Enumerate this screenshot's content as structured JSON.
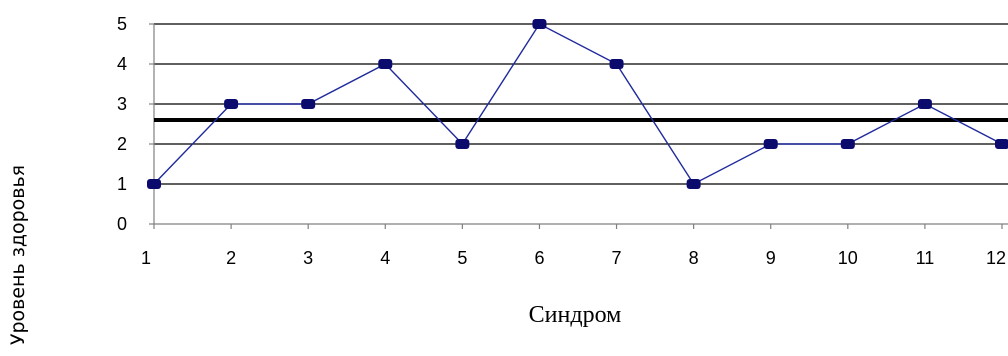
{
  "chart_data": {
    "type": "line",
    "title": "",
    "xlabel": "Синдром",
    "ylabel": "Уровень здоровья",
    "categories": [
      "1",
      "2",
      "3",
      "4",
      "5",
      "6",
      "7",
      "8",
      "9",
      "10",
      "11",
      "12"
    ],
    "series": [
      {
        "values": [
          1,
          3,
          3,
          4,
          2,
          5,
          4,
          1,
          2,
          2,
          3,
          2
        ],
        "color": "#1f2a9c",
        "marker_color": "#0b0b6e"
      }
    ],
    "reference_line": {
      "value": 2.6,
      "color": "#000000"
    },
    "yticks": [
      "0",
      "1",
      "2",
      "3",
      "4",
      "5"
    ],
    "ylim": [
      0,
      5
    ],
    "grid": true,
    "legend": "none"
  }
}
